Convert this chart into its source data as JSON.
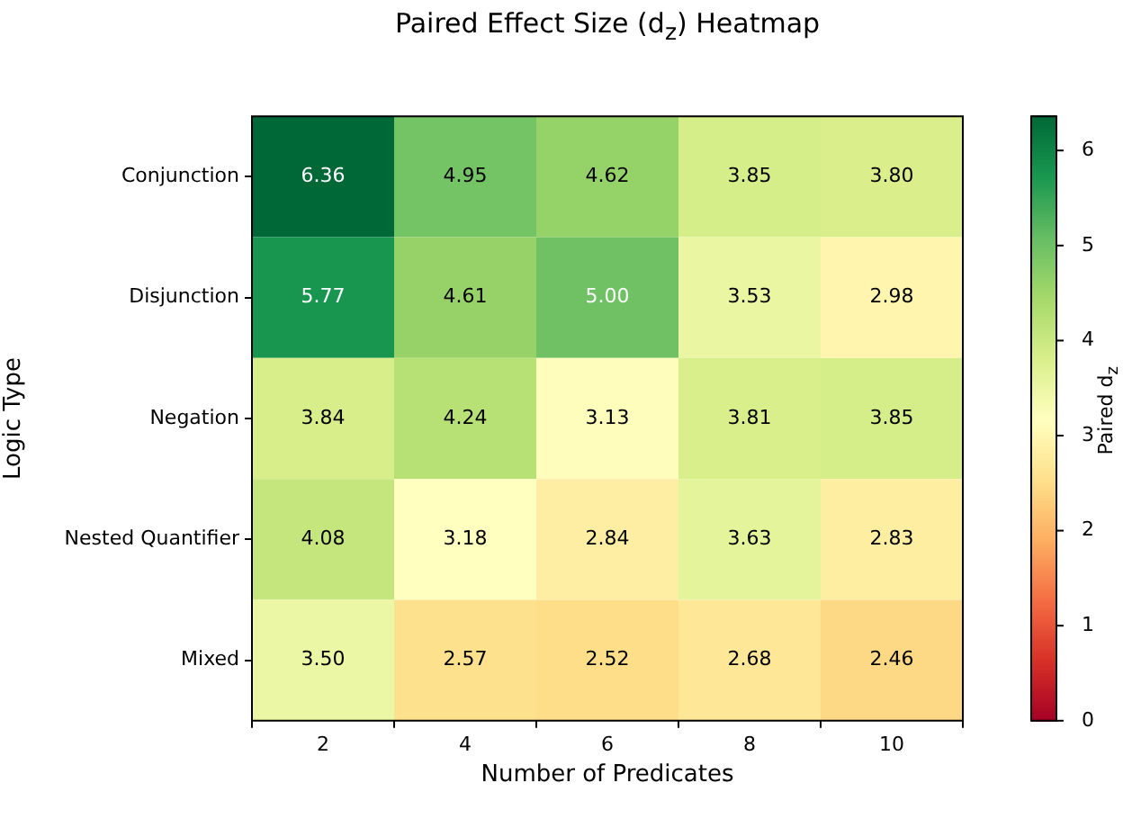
{
  "chart_data": {
    "type": "heatmap",
    "title": "Paired Effect Size (d$_{z}$) Heatmap",
    "xlabel": "Number of Predicates",
    "ylabel": "Logic Type",
    "clabel": "Paired d$_{z}$",
    "cell_labels": [
      [
        "6.36",
        "4.95",
        "4.62",
        "3.85",
        "3.80"
      ],
      [
        "5.77",
        "4.61",
        "5.00",
        "3.53",
        "2.98"
      ],
      [
        "3.84",
        "4.24",
        "3.13",
        "3.81",
        "3.85"
      ],
      [
        "4.08",
        "3.18",
        "2.84",
        "3.63",
        "2.83"
      ],
      [
        "3.50",
        "2.57",
        "2.52",
        "2.68",
        "2.46"
      ]
    ],
    "categories": [
      "2",
      "4",
      "6",
      "8",
      "10"
    ],
    "y_categories": [
      "Conjunction",
      "Disjunction",
      "Negation",
      "Nested Quantifier",
      "Mixed"
    ],
    "cells": [
      [
        6.36,
        4.95,
        4.62,
        3.85,
        3.8
      ],
      [
        5.77,
        4.61,
        5.0,
        3.53,
        2.98
      ],
      [
        3.84,
        4.24,
        3.13,
        3.81,
        3.85
      ],
      [
        4.08,
        3.18,
        2.84,
        3.63,
        2.83
      ],
      [
        3.5,
        2.57,
        2.52,
        2.68,
        2.46
      ]
    ],
    "clim": [
      0,
      6.36
    ],
    "cticks": [
      0,
      1,
      2,
      3,
      4,
      5,
      6
    ],
    "data_labels": true
  }
}
